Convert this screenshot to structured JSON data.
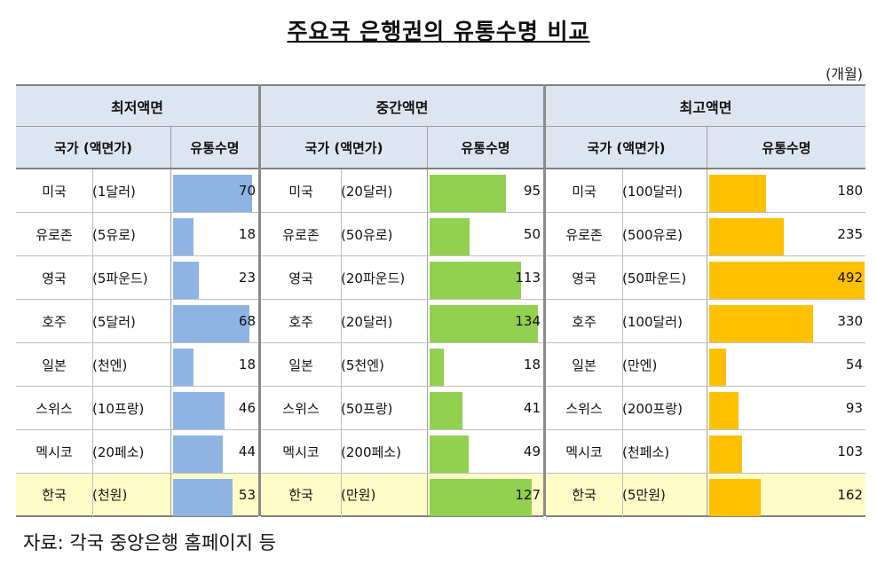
{
  "title": "주요국 은행권의 유통수명 비교",
  "unit": "(개월)",
  "source": "자료: 각국 중앙은행 홈페이지 등",
  "col_country_header": "국가 (액면가)",
  "col_value_header": "유통수명",
  "highlight_color": "#fffcc8",
  "header_color": "#dde5f0",
  "chart_data": {
    "type": "table",
    "value_unit": "개월",
    "groups": [
      {
        "name": "최저액면",
        "bar_color": "#8eb4e3",
        "max": 75,
        "rows": [
          {
            "country": "미국",
            "denom": "(1달러)",
            "value": 70
          },
          {
            "country": "유로존",
            "denom": "(5유로)",
            "value": 18
          },
          {
            "country": "영국",
            "denom": "(5파운드)",
            "value": 23
          },
          {
            "country": "호주",
            "denom": "(5달러)",
            "value": 68
          },
          {
            "country": "일본",
            "denom": "(천엔)",
            "value": 18
          },
          {
            "country": "스위스",
            "denom": "(10프랑)",
            "value": 46
          },
          {
            "country": "멕시코",
            "denom": "(20페소)",
            "value": 44
          },
          {
            "country": "한국",
            "denom": "(천원)",
            "value": 53
          }
        ]
      },
      {
        "name": "중간액면",
        "bar_color": "#92d050",
        "max": 140,
        "rows": [
          {
            "country": "미국",
            "denom": "(20달러)",
            "value": 95
          },
          {
            "country": "유로존",
            "denom": "(50유로)",
            "value": 50
          },
          {
            "country": "영국",
            "denom": "(20파운드)",
            "value": 113
          },
          {
            "country": "호주",
            "denom": "(20달러)",
            "value": 134
          },
          {
            "country": "일본",
            "denom": "(5천엔)",
            "value": 18
          },
          {
            "country": "스위스",
            "denom": "(50프랑)",
            "value": 41
          },
          {
            "country": "멕시코",
            "denom": "(200페소)",
            "value": 49
          },
          {
            "country": "한국",
            "denom": "(만원)",
            "value": 127
          }
        ]
      },
      {
        "name": "최고액면",
        "bar_color": "#ffc000",
        "max": 492,
        "rows": [
          {
            "country": "미국",
            "denom": "(100달러)",
            "value": 180
          },
          {
            "country": "유로존",
            "denom": "(500유로)",
            "value": 235
          },
          {
            "country": "영국",
            "denom": "(50파운드)",
            "value": 492
          },
          {
            "country": "호주",
            "denom": "(100달러)",
            "value": 330
          },
          {
            "country": "일본",
            "denom": "(만엔)",
            "value": 54
          },
          {
            "country": "스위스",
            "denom": "(200프랑)",
            "value": 93
          },
          {
            "country": "멕시코",
            "denom": "(천페소)",
            "value": 103
          },
          {
            "country": "한국",
            "denom": "(5만원)",
            "value": 162
          }
        ]
      }
    ]
  }
}
